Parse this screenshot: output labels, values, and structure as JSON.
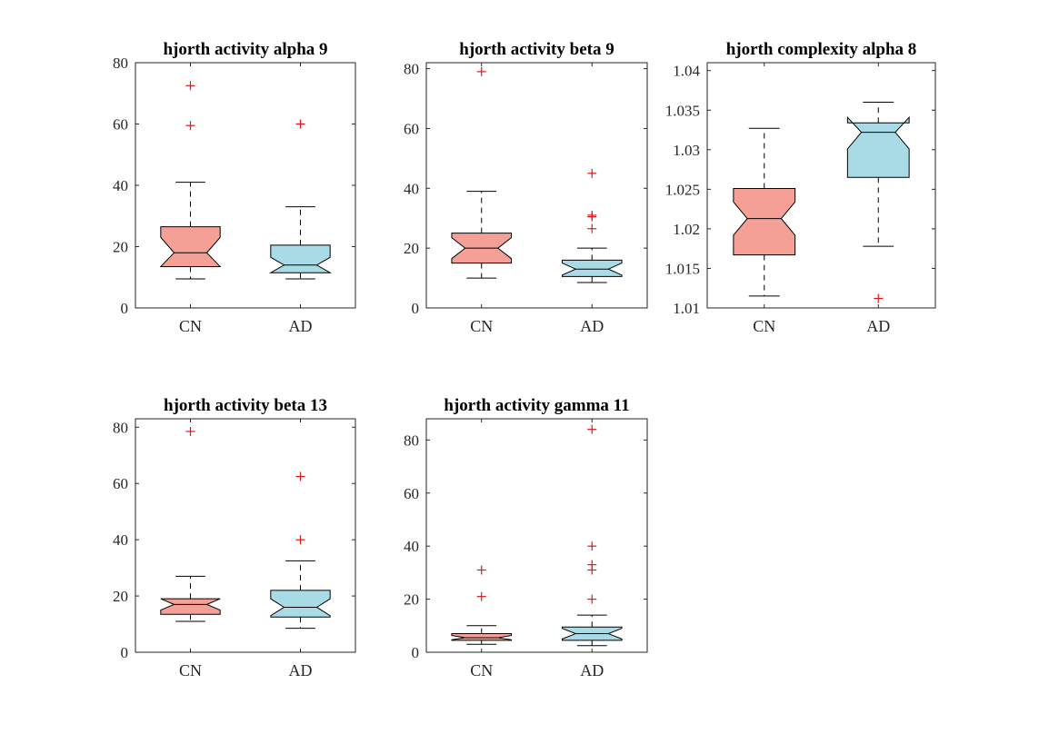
{
  "colors": {
    "CN": "#f4a097",
    "AD": "#a8dbe6",
    "outlier": "#e01818",
    "axis": "#262626"
  },
  "chart_data": [
    {
      "type": "boxplot",
      "title": "hjorth activity alpha 9",
      "categories": [
        "CN",
        "AD"
      ],
      "ylim": [
        0,
        80
      ],
      "yticks": [
        0,
        20,
        40,
        60,
        80
      ],
      "ytick_labels": [
        "0",
        "20",
        "40",
        "60",
        "80"
      ],
      "grid": false,
      "boxes": [
        {
          "group": "CN",
          "lower_whisker": 9.5,
          "q1": 13.5,
          "median": 18,
          "q3": 26.5,
          "upper_whisker": 41,
          "notch_low": 13.5,
          "notch_high": 23,
          "outliers": [
            72.5,
            59.5
          ]
        },
        {
          "group": "AD",
          "lower_whisker": 9.5,
          "q1": 11.5,
          "median": 14,
          "q3": 20.5,
          "upper_whisker": 33,
          "notch_low": 11.5,
          "notch_high": 16.5,
          "outliers": [
            60
          ]
        }
      ]
    },
    {
      "type": "boxplot",
      "title": "hjorth activity beta 9",
      "categories": [
        "CN",
        "AD"
      ],
      "ylim": [
        0,
        82
      ],
      "yticks": [
        0,
        20,
        40,
        60,
        80
      ],
      "ytick_labels": [
        "0",
        "20",
        "40",
        "60",
        "80"
      ],
      "grid": false,
      "boxes": [
        {
          "group": "CN",
          "lower_whisker": 10,
          "q1": 15,
          "median": 20,
          "q3": 25,
          "upper_whisker": 39,
          "notch_low": 16.5,
          "notch_high": 23.5,
          "outliers": [
            79
          ]
        },
        {
          "group": "AD",
          "lower_whisker": 8.5,
          "q1": 10.5,
          "median": 13,
          "q3": 16,
          "upper_whisker": 20,
          "notch_low": 11,
          "notch_high": 15,
          "outliers": [
            45,
            31,
            30.5,
            26.5
          ]
        }
      ]
    },
    {
      "type": "boxplot",
      "title": "hjorth complexity alpha 8",
      "categories": [
        "CN",
        "AD"
      ],
      "ylim": [
        1.01,
        1.041
      ],
      "yticks": [
        1.01,
        1.015,
        1.02,
        1.025,
        1.03,
        1.035,
        1.04
      ],
      "ytick_labels": [
        "1.01",
        "1.015",
        "1.02",
        "1.025",
        "1.03",
        "1.035",
        "1.04"
      ],
      "grid": false,
      "boxes": [
        {
          "group": "CN",
          "lower_whisker": 1.0115,
          "q1": 1.0167,
          "median": 1.0213,
          "q3": 1.0251,
          "upper_whisker": 1.0327,
          "notch_low": 1.0192,
          "notch_high": 1.0234,
          "outliers": []
        },
        {
          "group": "AD",
          "lower_whisker": 1.0178,
          "q1": 1.0265,
          "median": 1.0322,
          "q3": 1.0334,
          "upper_whisker": 1.036,
          "notch_low": 1.0301,
          "notch_high": 1.0341,
          "outliers": [
            1.0112
          ]
        }
      ]
    },
    {
      "type": "boxplot",
      "title": "hjorth activity beta 13",
      "categories": [
        "CN",
        "AD"
      ],
      "ylim": [
        0,
        83
      ],
      "yticks": [
        0,
        20,
        40,
        60,
        80
      ],
      "ytick_labels": [
        "0",
        "20",
        "40",
        "60",
        "80"
      ],
      "grid": false,
      "boxes": [
        {
          "group": "CN",
          "lower_whisker": 11,
          "q1": 13.5,
          "median": 17,
          "q3": 19,
          "upper_whisker": 27,
          "notch_low": 15,
          "notch_high": 19,
          "outliers": [
            78.5
          ]
        },
        {
          "group": "AD",
          "lower_whisker": 8.5,
          "q1": 12.5,
          "median": 16,
          "q3": 22,
          "upper_whisker": 32.5,
          "notch_low": 13,
          "notch_high": 19,
          "outliers": [
            62.5,
            40
          ]
        }
      ]
    },
    {
      "type": "boxplot",
      "title": "hjorth activity gamma 11",
      "categories": [
        "CN",
        "AD"
      ],
      "ylim": [
        0,
        88
      ],
      "yticks": [
        0,
        20,
        40,
        60,
        80
      ],
      "ytick_labels": [
        "0",
        "20",
        "40",
        "60",
        "80"
      ],
      "grid": false,
      "boxes": [
        {
          "group": "CN",
          "lower_whisker": 3,
          "q1": 4.5,
          "median": 5.5,
          "q3": 7,
          "upper_whisker": 10,
          "notch_low": 4.7,
          "notch_high": 6.3,
          "outliers": [
            31,
            21
          ]
        },
        {
          "group": "AD",
          "lower_whisker": 2.5,
          "q1": 4.5,
          "median": 7,
          "q3": 9.5,
          "upper_whisker": 14,
          "notch_low": 5,
          "notch_high": 9,
          "outliers": [
            84,
            40,
            33,
            31,
            20
          ]
        }
      ]
    }
  ]
}
